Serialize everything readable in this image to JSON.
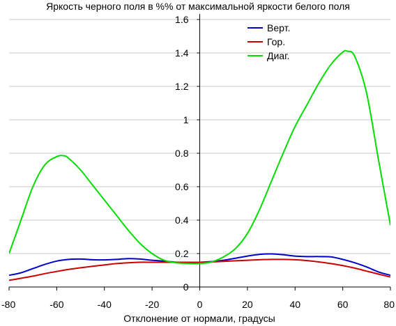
{
  "chart_data": {
    "type": "line",
    "title": "Яркость черного поля в %% от максимальной яркости белого поля",
    "xlabel": "Отклонение от нормали, градусы",
    "ylabel": "",
    "xlim": [
      -80,
      80
    ],
    "ylim": [
      0,
      1.6
    ],
    "x_ticks": [
      -80,
      -60,
      -40,
      -20,
      0,
      20,
      40,
      60,
      80
    ],
    "y_ticks": [
      0,
      0.2,
      0.4,
      0.6,
      0.8,
      1,
      1.2,
      1.4,
      1.6
    ],
    "x_tick_labels": [
      "-80",
      "-60",
      "-40",
      "-20",
      "0",
      "20",
      "40",
      "60",
      "80"
    ],
    "y_tick_labels": [
      "0",
      "0.2",
      "0.4",
      "0.6",
      "0.8",
      "1",
      "1.2",
      "1.4",
      "1.6"
    ],
    "grid": "horizontal",
    "legend_position": "top-right",
    "series": [
      {
        "name": "Верт.",
        "color": "#0000cc",
        "x": [
          -80,
          -75,
          -70,
          -65,
          -60,
          -55,
          -50,
          -45,
          -40,
          -35,
          -30,
          -25,
          -20,
          -15,
          -10,
          -5,
          0,
          5,
          10,
          15,
          20,
          25,
          30,
          35,
          40,
          45,
          50,
          55,
          60,
          65,
          70,
          75,
          80
        ],
        "y": [
          0.07,
          0.085,
          0.11,
          0.135,
          0.155,
          0.165,
          0.167,
          0.163,
          0.162,
          0.165,
          0.17,
          0.167,
          0.16,
          0.155,
          0.148,
          0.143,
          0.148,
          0.152,
          0.16,
          0.172,
          0.185,
          0.195,
          0.198,
          0.193,
          0.185,
          0.182,
          0.182,
          0.18,
          0.165,
          0.145,
          0.12,
          0.09,
          0.07
        ]
      },
      {
        "name": "Гор.",
        "color": "#cc0000",
        "x": [
          -80,
          -75,
          -70,
          -65,
          -60,
          -55,
          -50,
          -45,
          -40,
          -35,
          -30,
          -25,
          -20,
          -15,
          -10,
          -5,
          0,
          5,
          10,
          15,
          20,
          25,
          30,
          35,
          40,
          45,
          50,
          55,
          60,
          65,
          70,
          75,
          80
        ],
        "y": [
          0.04,
          0.052,
          0.065,
          0.08,
          0.093,
          0.105,
          0.115,
          0.124,
          0.132,
          0.14,
          0.145,
          0.148,
          0.148,
          0.148,
          0.148,
          0.148,
          0.148,
          0.15,
          0.153,
          0.157,
          0.16,
          0.163,
          0.165,
          0.165,
          0.163,
          0.158,
          0.15,
          0.14,
          0.128,
          0.113,
          0.095,
          0.077,
          0.06
        ]
      },
      {
        "name": "Диаг.",
        "color": "#00dd00",
        "x": [
          -80,
          -75,
          -70,
          -65,
          -60,
          -57,
          -55,
          -50,
          -45,
          -40,
          -35,
          -30,
          -25,
          -20,
          -15,
          -10,
          -5,
          0,
          5,
          10,
          15,
          20,
          25,
          30,
          35,
          40,
          45,
          50,
          55,
          60,
          62,
          65,
          70,
          75,
          80
        ],
        "y": [
          0.2,
          0.4,
          0.6,
          0.73,
          0.78,
          0.785,
          0.77,
          0.7,
          0.61,
          0.52,
          0.43,
          0.34,
          0.26,
          0.2,
          0.16,
          0.145,
          0.14,
          0.14,
          0.15,
          0.18,
          0.23,
          0.32,
          0.46,
          0.63,
          0.8,
          0.96,
          1.09,
          1.22,
          1.33,
          1.405,
          1.41,
          1.38,
          1.16,
          0.76,
          0.37
        ]
      }
    ]
  }
}
